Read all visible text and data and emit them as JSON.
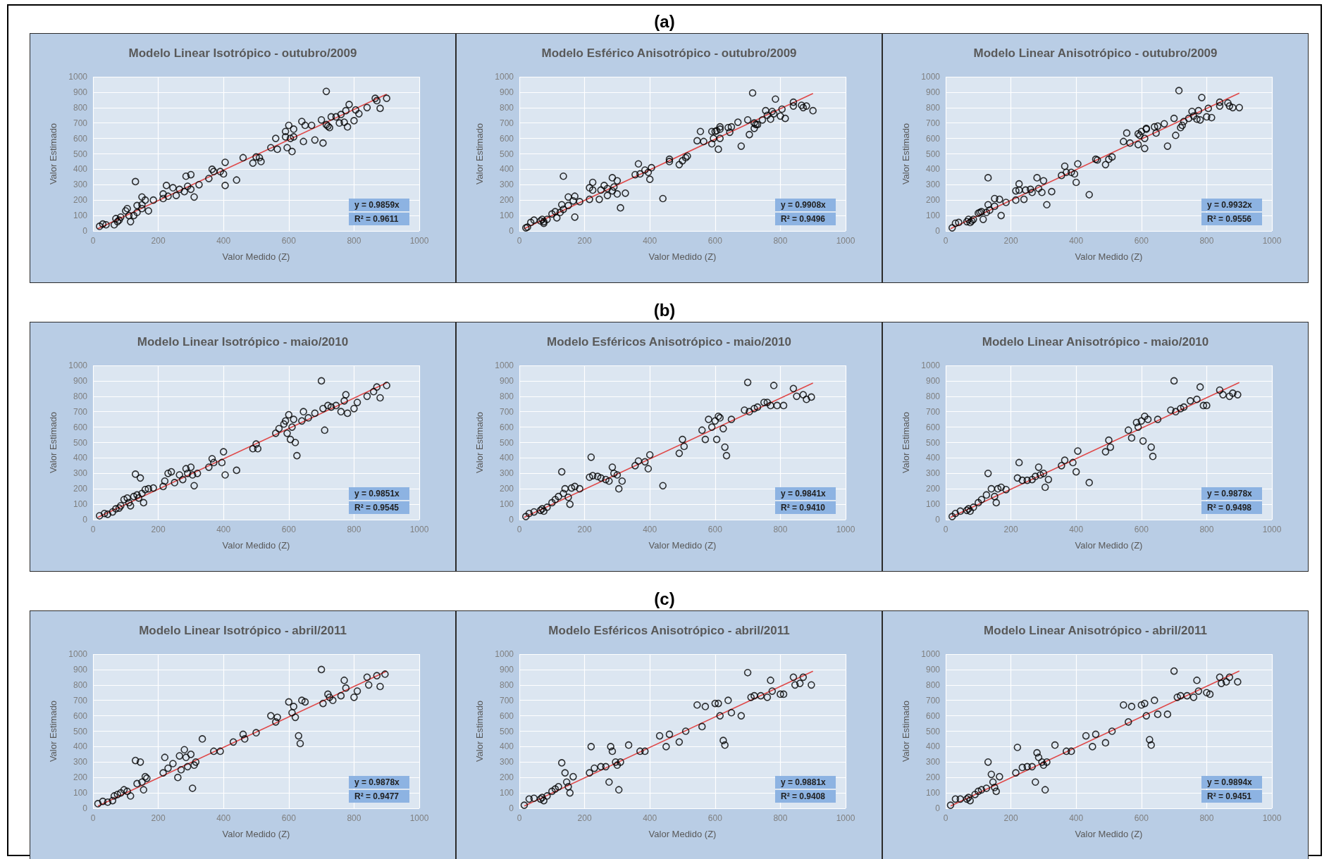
{
  "chart_data": [
    {
      "type": "scatter",
      "title": "Modelo Linear Isotrópico - outubro/2009",
      "xlabel": "Valor Medido (Z)",
      "ylabel": "Valor Estimado",
      "xlim": [
        0,
        1000
      ],
      "xticks": [
        0,
        200,
        400,
        600,
        800,
        1000
      ],
      "ylim": [
        0,
        1000
      ],
      "yticks": [
        0,
        100,
        200,
        300,
        400,
        500,
        600,
        700,
        800,
        900,
        1000
      ],
      "grid": true,
      "annotations": [
        "(a)",
        "y = 0.9859x",
        "R² = 0.9611"
      ],
      "series": [
        {
          "color": "#000000",
          "marker": "circle",
          "x": [
            20,
            30,
            40,
            65,
            70,
            75,
            80,
            85,
            100,
            105,
            110,
            115,
            125,
            130,
            135,
            135,
            150,
            150,
            150,
            160,
            170,
            185,
            215,
            215,
            225,
            230,
            245,
            255,
            265,
            280,
            285,
            290,
            300,
            300,
            310,
            325,
            355,
            365,
            370,
            390,
            400,
            405,
            405,
            440,
            460,
            490,
            500,
            510,
            515,
            545,
            560,
            565,
            590,
            590,
            595,
            600,
            605,
            610,
            615,
            615,
            640,
            645,
            650,
            670,
            680,
            700,
            705,
            715,
            715,
            720,
            725,
            730,
            745,
            755,
            760,
            770,
            775,
            780,
            785,
            800,
            805,
            815,
            840,
            865,
            870,
            880,
            900
          ],
          "values": [
            30,
            45,
            40,
            40,
            80,
            60,
            70,
            90,
            130,
            145,
            100,
            60,
            100,
            320,
            165,
            120,
            220,
            145,
            170,
            200,
            130,
            200,
            210,
            240,
            295,
            225,
            280,
            230,
            270,
            255,
            355,
            290,
            270,
            365,
            220,
            300,
            340,
            400,
            385,
            385,
            370,
            295,
            445,
            330,
            475,
            440,
            480,
            475,
            450,
            540,
            600,
            530,
            645,
            610,
            540,
            685,
            600,
            515,
            660,
            610,
            710,
            580,
            685,
            685,
            590,
            720,
            570,
            905,
            690,
            680,
            670,
            740,
            740,
            700,
            755,
            705,
            780,
            675,
            820,
            715,
            785,
            760,
            800,
            860,
            845,
            795,
            860
          ]
        },
        {
          "type": "line",
          "color": "#e04848",
          "marker": "none",
          "x": [
            15,
            900
          ],
          "values": [
            15,
            887
          ]
        }
      ]
    },
    {
      "type": "scatter",
      "title": "Modelo Esférico Anisotrópico - outubro/2009",
      "xlabel": "Valor Medido (Z)",
      "ylabel": "Valor Estimado",
      "xlim": [
        0,
        1000
      ],
      "xticks": [
        0,
        200,
        400,
        600,
        800,
        1000
      ],
      "ylim": [
        0,
        1000
      ],
      "yticks": [
        0,
        100,
        200,
        300,
        400,
        500,
        600,
        700,
        800,
        900,
        1000
      ],
      "grid": true,
      "annotations": [
        "y = 0.9908x",
        "R² = 0.9496"
      ],
      "series": [
        {
          "color": "#000000",
          "marker": "circle",
          "x": [
            20,
            25,
            35,
            45,
            65,
            70,
            75,
            75,
            85,
            100,
            110,
            115,
            125,
            130,
            135,
            135,
            150,
            150,
            165,
            170,
            170,
            185,
            215,
            215,
            225,
            225,
            245,
            250,
            260,
            270,
            270,
            285,
            285,
            290,
            300,
            300,
            310,
            325,
            355,
            365,
            370,
            385,
            395,
            400,
            405,
            440,
            460,
            460,
            490,
            500,
            510,
            515,
            545,
            555,
            565,
            590,
            590,
            595,
            600,
            605,
            610,
            615,
            615,
            615,
            640,
            645,
            650,
            670,
            680,
            700,
            705,
            715,
            720,
            720,
            725,
            730,
            745,
            755,
            760,
            770,
            775,
            780,
            785,
            800,
            805,
            815,
            840,
            840,
            865,
            870,
            880,
            900
          ],
          "values": [
            20,
            25,
            55,
            70,
            65,
            75,
            50,
            60,
            75,
            110,
            125,
            85,
            120,
            170,
            355,
            140,
            220,
            165,
            195,
            225,
            90,
            190,
            205,
            280,
            315,
            265,
            205,
            265,
            295,
            275,
            230,
            260,
            345,
            285,
            240,
            325,
            150,
            245,
            365,
            435,
            370,
            395,
            380,
            335,
            410,
            210,
            450,
            465,
            430,
            455,
            475,
            485,
            585,
            645,
            580,
            645,
            565,
            600,
            645,
            650,
            530,
            600,
            660,
            675,
            670,
            640,
            675,
            705,
            550,
            720,
            625,
            895,
            665,
            700,
            690,
            690,
            720,
            780,
            750,
            725,
            775,
            760,
            855,
            745,
            790,
            730,
            835,
            810,
            815,
            800,
            810,
            780
          ]
        },
        {
          "type": "line",
          "color": "#e04848",
          "marker": "none",
          "x": [
            15,
            900
          ],
          "values": [
            15,
            892
          ]
        }
      ]
    },
    {
      "type": "scatter",
      "title": "Modelo Linear Anisotrópico - outubro/2009",
      "xlabel": "Valor Medido (Z)",
      "ylabel": "Valor Estimado",
      "xlim": [
        0,
        1000
      ],
      "xticks": [
        0,
        200,
        400,
        600,
        800,
        1000
      ],
      "ylim": [
        0,
        1000
      ],
      "yticks": [
        0,
        100,
        200,
        300,
        400,
        500,
        600,
        700,
        800,
        900,
        1000
      ],
      "grid": true,
      "annotations": [
        "y = 0.9932x",
        "R² = 0.9556"
      ],
      "series": [
        {
          "color": "#000000",
          "marker": "circle",
          "x": [
            20,
            30,
            40,
            65,
            70,
            75,
            80,
            85,
            100,
            105,
            110,
            115,
            125,
            130,
            130,
            135,
            150,
            150,
            165,
            170,
            185,
            215,
            215,
            225,
            225,
            240,
            245,
            260,
            265,
            280,
            285,
            295,
            300,
            310,
            325,
            355,
            365,
            370,
            385,
            395,
            400,
            405,
            440,
            460,
            465,
            490,
            500,
            510,
            545,
            555,
            565,
            590,
            590,
            595,
            600,
            610,
            610,
            615,
            615,
            640,
            645,
            650,
            670,
            680,
            700,
            705,
            715,
            720,
            725,
            730,
            745,
            755,
            760,
            770,
            775,
            780,
            785,
            800,
            805,
            815,
            840,
            840,
            865,
            870,
            880,
            900
          ],
          "values": [
            20,
            50,
            55,
            60,
            75,
            55,
            65,
            75,
            115,
            120,
            125,
            75,
            120,
            170,
            345,
            135,
            210,
            160,
            205,
            100,
            185,
            200,
            260,
            305,
            265,
            205,
            265,
            270,
            250,
            345,
            275,
            250,
            325,
            170,
            255,
            360,
            420,
            380,
            380,
            370,
            315,
            435,
            235,
            465,
            460,
            430,
            465,
            480,
            580,
            635,
            570,
            630,
            560,
            620,
            645,
            535,
            600,
            660,
            665,
            675,
            635,
            680,
            695,
            550,
            730,
            620,
            910,
            670,
            685,
            710,
            730,
            775,
            745,
            725,
            780,
            720,
            865,
            740,
            795,
            735,
            835,
            810,
            830,
            810,
            800,
            800
          ]
        },
        {
          "type": "line",
          "color": "#e04848",
          "marker": "none",
          "x": [
            15,
            900
          ],
          "values": [
            15,
            894
          ]
        }
      ]
    },
    {
      "type": "scatter",
      "title": "Modelo Linear Isotrópico - maio/2010",
      "xlabel": "Valor Medido (Z)",
      "ylabel": "Valor Estimado",
      "xlim": [
        0,
        1000
      ],
      "xticks": [
        0,
        200,
        400,
        600,
        800,
        1000
      ],
      "ylim": [
        0,
        1000
      ],
      "yticks": [
        0,
        100,
        200,
        300,
        400,
        500,
        600,
        700,
        800,
        900,
        1000
      ],
      "grid": true,
      "annotations": [
        "(b)",
        "y = 0.9851x",
        "R² = 0.9545"
      ],
      "series": [
        {
          "color": "#000000",
          "marker": "circle",
          "x": [
            20,
            35,
            45,
            60,
            70,
            80,
            85,
            95,
            105,
            110,
            115,
            125,
            130,
            135,
            140,
            145,
            150,
            155,
            160,
            170,
            185,
            215,
            220,
            230,
            240,
            250,
            265,
            275,
            285,
            290,
            300,
            305,
            310,
            320,
            355,
            365,
            370,
            395,
            400,
            405,
            440,
            490,
            500,
            505,
            560,
            570,
            585,
            590,
            595,
            600,
            605,
            610,
            615,
            620,
            625,
            640,
            645,
            660,
            680,
            700,
            705,
            710,
            720,
            730,
            745,
            760,
            770,
            775,
            780,
            800,
            810,
            840,
            860,
            870,
            880,
            900
          ],
          "values": [
            25,
            40,
            35,
            50,
            70,
            75,
            90,
            130,
            140,
            110,
            90,
            150,
            295,
            160,
            140,
            270,
            170,
            110,
            195,
            200,
            205,
            215,
            250,
            300,
            310,
            240,
            290,
            260,
            330,
            300,
            340,
            290,
            220,
            300,
            340,
            395,
            370,
            370,
            440,
            290,
            320,
            460,
            490,
            460,
            560,
            590,
            620,
            640,
            560,
            680,
            520,
            600,
            650,
            500,
            415,
            640,
            700,
            660,
            690,
            900,
            720,
            580,
            740,
            730,
            740,
            700,
            770,
            810,
            690,
            720,
            760,
            800,
            830,
            860,
            790,
            870
          ]
        },
        {
          "type": "line",
          "color": "#e04848",
          "marker": "none",
          "x": [
            15,
            900
          ],
          "values": [
            15,
            887
          ]
        }
      ]
    },
    {
      "type": "scatter",
      "title": "Modelo Esféricos Anisotrópico - maio/2010",
      "xlabel": "Valor Medido (Z)",
      "ylabel": "Valor Estimado",
      "xlim": [
        0,
        1000
      ],
      "xticks": [
        0,
        200,
        400,
        600,
        800,
        1000
      ],
      "ylim": [
        0,
        1000
      ],
      "yticks": [
        0,
        100,
        200,
        300,
        400,
        500,
        600,
        700,
        800,
        900,
        1000
      ],
      "grid": true,
      "annotations": [
        "y = 0.9841x",
        "R² = 0.9410"
      ],
      "series": [
        {
          "color": "#000000",
          "marker": "circle",
          "x": [
            20,
            30,
            45,
            65,
            70,
            75,
            85,
            100,
            110,
            120,
            130,
            135,
            140,
            150,
            155,
            160,
            170,
            185,
            215,
            220,
            225,
            240,
            250,
            265,
            275,
            285,
            290,
            300,
            305,
            315,
            355,
            365,
            385,
            395,
            400,
            440,
            490,
            500,
            505,
            560,
            570,
            580,
            590,
            600,
            605,
            610,
            615,
            625,
            630,
            635,
            650,
            690,
            700,
            705,
            720,
            730,
            750,
            760,
            770,
            780,
            790,
            810,
            840,
            850,
            870,
            880,
            895
          ],
          "values": [
            20,
            40,
            50,
            60,
            70,
            55,
            80,
            110,
            130,
            150,
            310,
            170,
            200,
            145,
            100,
            205,
            215,
            200,
            275,
            405,
            285,
            280,
            270,
            260,
            250,
            340,
            300,
            290,
            200,
            250,
            350,
            380,
            375,
            330,
            420,
            220,
            430,
            520,
            475,
            580,
            520,
            650,
            600,
            640,
            520,
            670,
            660,
            590,
            470,
            415,
            650,
            710,
            890,
            700,
            720,
            730,
            760,
            760,
            740,
            870,
            740,
            740,
            850,
            800,
            810,
            780,
            795
          ]
        },
        {
          "type": "line",
          "color": "#e04848",
          "marker": "none",
          "x": [
            15,
            900
          ],
          "values": [
            15,
            886
          ]
        }
      ]
    },
    {
      "type": "scatter",
      "title": "Modelo Linear Anisotrópico - maio/2010",
      "xlabel": "Valor Medido (Z)",
      "ylabel": "Valor Estimado",
      "xlim": [
        0,
        1000
      ],
      "xticks": [
        0,
        200,
        400,
        600,
        800,
        1000
      ],
      "ylim": [
        0,
        1000
      ],
      "yticks": [
        0,
        100,
        200,
        300,
        400,
        500,
        600,
        700,
        800,
        900,
        1000
      ],
      "grid": true,
      "annotations": [
        "y = 0.9878x",
        "R² = 0.9498"
      ],
      "series": [
        {
          "color": "#000000",
          "marker": "circle",
          "x": [
            20,
            30,
            45,
            65,
            70,
            75,
            85,
            100,
            110,
            125,
            130,
            140,
            150,
            155,
            160,
            170,
            185,
            220,
            225,
            235,
            250,
            265,
            275,
            285,
            290,
            300,
            305,
            315,
            355,
            365,
            390,
            400,
            405,
            440,
            490,
            500,
            505,
            560,
            570,
            585,
            590,
            600,
            605,
            610,
            620,
            630,
            635,
            650,
            690,
            700,
            705,
            720,
            730,
            750,
            770,
            780,
            790,
            800,
            840,
            850,
            870,
            880,
            895
          ],
          "values": [
            20,
            40,
            55,
            60,
            70,
            55,
            80,
            110,
            130,
            160,
            300,
            200,
            150,
            110,
            200,
            210,
            195,
            270,
            370,
            255,
            255,
            260,
            280,
            340,
            290,
            300,
            210,
            260,
            350,
            385,
            370,
            310,
            445,
            240,
            440,
            515,
            470,
            580,
            530,
            630,
            600,
            640,
            510,
            670,
            650,
            470,
            410,
            650,
            710,
            900,
            700,
            720,
            730,
            770,
            780,
            860,
            740,
            740,
            840,
            810,
            800,
            820,
            810
          ]
        },
        {
          "type": "line",
          "color": "#e04848",
          "marker": "none",
          "x": [
            15,
            900
          ],
          "values": [
            15,
            889
          ]
        }
      ]
    },
    {
      "type": "scatter",
      "title": "Modelo Linear Isotrópico - abril/2011",
      "xlabel": "Valor Medido (Z)",
      "ylabel": "Valor Estimado",
      "xlim": [
        0,
        1000
      ],
      "xticks": [
        0,
        200,
        400,
        600,
        800,
        1000
      ],
      "ylim": [
        0,
        1000
      ],
      "yticks": [
        0,
        100,
        200,
        300,
        400,
        500,
        600,
        700,
        800,
        900,
        1000
      ],
      "grid": true,
      "annotations": [
        "(c)",
        "y = 0.9878x",
        "R² = 0.9477"
      ],
      "series": [
        {
          "color": "#000000",
          "marker": "circle",
          "x": [
            15,
            30,
            45,
            60,
            65,
            75,
            85,
            95,
            105,
            115,
            130,
            135,
            145,
            150,
            155,
            160,
            165,
            215,
            220,
            230,
            245,
            260,
            265,
            270,
            280,
            285,
            290,
            300,
            305,
            310,
            315,
            335,
            370,
            390,
            430,
            460,
            465,
            500,
            545,
            560,
            565,
            600,
            610,
            615,
            620,
            630,
            635,
            640,
            650,
            700,
            705,
            720,
            725,
            735,
            760,
            770,
            775,
            800,
            810,
            840,
            845,
            870,
            880,
            895
          ],
          "values": [
            30,
            45,
            40,
            50,
            80,
            90,
            100,
            120,
            110,
            80,
            310,
            160,
            300,
            170,
            120,
            205,
            195,
            230,
            330,
            260,
            290,
            200,
            340,
            250,
            380,
            330,
            270,
            350,
            130,
            280,
            300,
            450,
            370,
            370,
            430,
            480,
            450,
            490,
            600,
            560,
            590,
            690,
            620,
            660,
            590,
            470,
            420,
            700,
            690,
            900,
            680,
            740,
            720,
            700,
            730,
            830,
            780,
            720,
            760,
            850,
            800,
            860,
            790,
            870
          ]
        },
        {
          "type": "line",
          "color": "#e04848",
          "marker": "none",
          "x": [
            15,
            900
          ],
          "values": [
            15,
            889
          ]
        }
      ]
    },
    {
      "type": "scatter",
      "title": "Modelo Esféricos Anisotrópico - abril/2011",
      "xlabel": "Valor Medido (Z)",
      "ylabel": "Valor Estimado",
      "xlim": [
        0,
        1000
      ],
      "xticks": [
        0,
        200,
        400,
        600,
        800,
        1000
      ],
      "ylim": [
        0,
        1000
      ],
      "yticks": [
        0,
        100,
        200,
        300,
        400,
        500,
        600,
        700,
        800,
        900,
        1000
      ],
      "grid": true,
      "annotations": [
        "y = 0.9881x",
        "R² = 0.9408"
      ],
      "series": [
        {
          "color": "#000000",
          "marker": "circle",
          "x": [
            15,
            30,
            45,
            65,
            70,
            75,
            85,
            100,
            110,
            120,
            130,
            140,
            145,
            150,
            155,
            165,
            215,
            220,
            230,
            250,
            265,
            275,
            280,
            285,
            295,
            300,
            305,
            310,
            335,
            370,
            385,
            430,
            450,
            460,
            490,
            510,
            545,
            560,
            570,
            600,
            610,
            615,
            625,
            630,
            640,
            650,
            680,
            700,
            710,
            720,
            740,
            760,
            770,
            775,
            800,
            810,
            840,
            845,
            860,
            870,
            895
          ],
          "values": [
            20,
            60,
            65,
            60,
            70,
            50,
            80,
            110,
            125,
            140,
            295,
            230,
            170,
            140,
            100,
            205,
            230,
            400,
            260,
            270,
            270,
            170,
            400,
            370,
            300,
            280,
            120,
            300,
            410,
            370,
            370,
            470,
            400,
            480,
            430,
            500,
            670,
            530,
            660,
            680,
            680,
            600,
            440,
            410,
            700,
            620,
            600,
            880,
            720,
            730,
            730,
            720,
            830,
            760,
            740,
            740,
            850,
            800,
            810,
            850,
            800
          ]
        },
        {
          "type": "line",
          "color": "#e04848",
          "marker": "none",
          "x": [
            15,
            900
          ],
          "values": [
            15,
            889
          ]
        }
      ]
    },
    {
      "type": "scatter",
      "title": "Modelo Linear Anisotrópico - abril/2011",
      "xlabel": "Valor Medido (Z)",
      "ylabel": "Valor Estimado",
      "xlim": [
        0,
        1000
      ],
      "xticks": [
        0,
        200,
        400,
        600,
        800,
        1000
      ],
      "ylim": [
        0,
        1000
      ],
      "yticks": [
        0,
        100,
        200,
        300,
        400,
        500,
        600,
        700,
        800,
        900,
        1000
      ],
      "grid": true,
      "annotations": [
        "y = 0.9894x",
        "R² = 0.9451"
      ],
      "series": [
        {
          "color": "#000000",
          "marker": "circle",
          "x": [
            15,
            30,
            45,
            65,
            70,
            75,
            90,
            100,
            110,
            125,
            130,
            140,
            145,
            150,
            155,
            165,
            215,
            220,
            235,
            250,
            265,
            275,
            280,
            285,
            295,
            300,
            305,
            310,
            335,
            370,
            385,
            430,
            450,
            460,
            490,
            510,
            545,
            560,
            570,
            600,
            610,
            615,
            625,
            630,
            640,
            650,
            680,
            700,
            710,
            720,
            740,
            760,
            770,
            775,
            800,
            810,
            840,
            845,
            860,
            870,
            895
          ],
          "values": [
            20,
            60,
            60,
            60,
            70,
            50,
            90,
            110,
            120,
            130,
            300,
            220,
            170,
            135,
            110,
            205,
            230,
            395,
            265,
            270,
            270,
            170,
            360,
            330,
            300,
            280,
            120,
            300,
            410,
            370,
            370,
            470,
            400,
            480,
            425,
            500,
            670,
            560,
            660,
            670,
            680,
            600,
            445,
            410,
            700,
            610,
            610,
            890,
            720,
            730,
            730,
            720,
            830,
            760,
            750,
            740,
            850,
            810,
            820,
            850,
            820
          ]
        },
        {
          "type": "line",
          "color": "#e04848",
          "marker": "none",
          "x": [
            15,
            900
          ],
          "values": [
            15,
            890
          ]
        }
      ]
    }
  ]
}
